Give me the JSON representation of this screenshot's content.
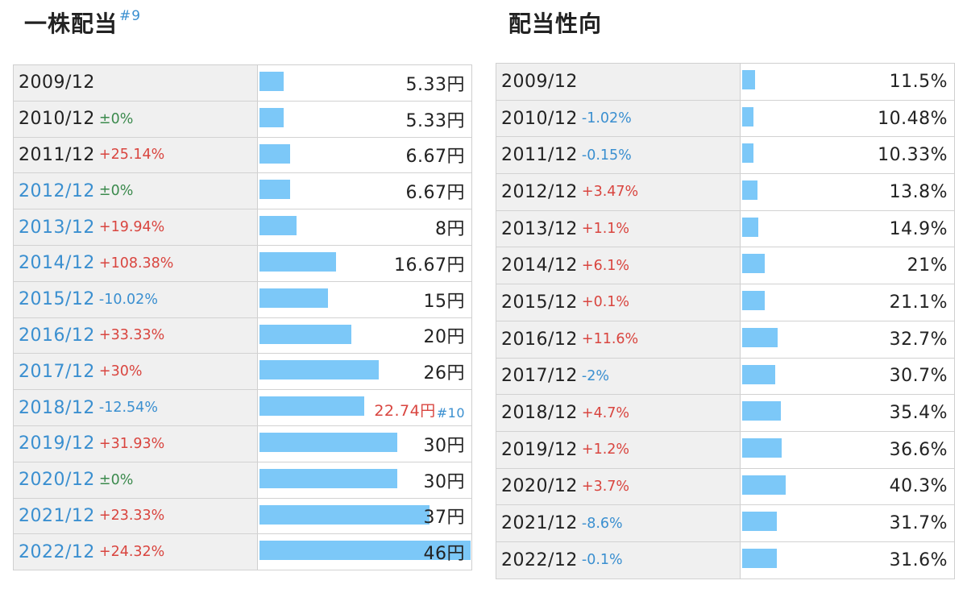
{
  "chart_data": [
    {
      "type": "bar",
      "title": "一株配当",
      "title_note": "#9",
      "max": 46,
      "rows": [
        {
          "year": "2009/12",
          "change": "",
          "value": 5.33,
          "display": "5.33円",
          "year_color": "black"
        },
        {
          "year": "2010/12",
          "change": "±0%",
          "value": 5.33,
          "display": "5.33円",
          "year_color": "black"
        },
        {
          "year": "2011/12",
          "change": "+25.14%",
          "value": 6.67,
          "display": "6.67円",
          "year_color": "black"
        },
        {
          "year": "2012/12",
          "change": "±0%",
          "value": 6.67,
          "display": "6.67円",
          "year_color": "blue"
        },
        {
          "year": "2013/12",
          "change": "+19.94%",
          "value": 8,
          "display": "8円",
          "year_color": "blue"
        },
        {
          "year": "2014/12",
          "change": "+108.38%",
          "value": 16.67,
          "display": "16.67円",
          "year_color": "blue"
        },
        {
          "year": "2015/12",
          "change": "-10.02%",
          "value": 15,
          "display": "15円",
          "year_color": "blue"
        },
        {
          "year": "2016/12",
          "change": "+33.33%",
          "value": 20,
          "display": "20円",
          "year_color": "blue"
        },
        {
          "year": "2017/12",
          "change": "+30%",
          "value": 26,
          "display": "26円",
          "year_color": "blue"
        },
        {
          "year": "2018/12",
          "change": "-12.54%",
          "value": 22.74,
          "display": "22.74円",
          "note": "#10",
          "highlight": true,
          "year_color": "blue"
        },
        {
          "year": "2019/12",
          "change": "+31.93%",
          "value": 30,
          "display": "30円",
          "year_color": "blue"
        },
        {
          "year": "2020/12",
          "change": "±0%",
          "value": 30,
          "display": "30円",
          "year_color": "blue"
        },
        {
          "year": "2021/12",
          "change": "+23.33%",
          "value": 37,
          "display": "37円",
          "year_color": "blue"
        },
        {
          "year": "2022/12",
          "change": "+24.32%",
          "value": 46,
          "display": "46円",
          "year_color": "blue"
        }
      ]
    },
    {
      "type": "bar",
      "title": "配当性向",
      "max": 46,
      "rows": [
        {
          "year": "2009/12",
          "change": "",
          "value": 11.5,
          "display": "11.5%",
          "year_color": "black"
        },
        {
          "year": "2010/12",
          "change": "-1.02%",
          "value": 10.48,
          "display": "10.48%",
          "year_color": "black"
        },
        {
          "year": "2011/12",
          "change": "-0.15%",
          "value": 10.33,
          "display": "10.33%",
          "year_color": "black"
        },
        {
          "year": "2012/12",
          "change": "+3.47%",
          "value": 13.8,
          "display": "13.8%",
          "year_color": "black"
        },
        {
          "year": "2013/12",
          "change": "+1.1%",
          "value": 14.9,
          "display": "14.9%",
          "year_color": "black"
        },
        {
          "year": "2014/12",
          "change": "+6.1%",
          "value": 21,
          "display": "21%",
          "year_color": "black"
        },
        {
          "year": "2015/12",
          "change": "+0.1%",
          "value": 21.1,
          "display": "21.1%",
          "year_color": "black"
        },
        {
          "year": "2016/12",
          "change": "+11.6%",
          "value": 32.7,
          "display": "32.7%",
          "year_color": "black"
        },
        {
          "year": "2017/12",
          "change": "-2%",
          "value": 30.7,
          "display": "30.7%",
          "year_color": "black"
        },
        {
          "year": "2018/12",
          "change": "+4.7%",
          "value": 35.4,
          "display": "35.4%",
          "year_color": "black"
        },
        {
          "year": "2019/12",
          "change": "+1.2%",
          "value": 36.6,
          "display": "36.6%",
          "year_color": "black"
        },
        {
          "year": "2020/12",
          "change": "+3.7%",
          "value": 40.3,
          "display": "40.3%",
          "year_color": "black"
        },
        {
          "year": "2021/12",
          "change": "-8.6%",
          "value": 31.7,
          "display": "31.7%",
          "year_color": "black"
        },
        {
          "year": "2022/12",
          "change": "-0.1%",
          "value": 31.6,
          "display": "31.6%",
          "year_color": "black"
        }
      ]
    }
  ],
  "colors": {
    "bar": "#7cc8f8",
    "positive": "#d9453f",
    "negative": "#3a8fd0",
    "zero": "#3b8a4d",
    "label_bg": "#f0f0f0"
  }
}
